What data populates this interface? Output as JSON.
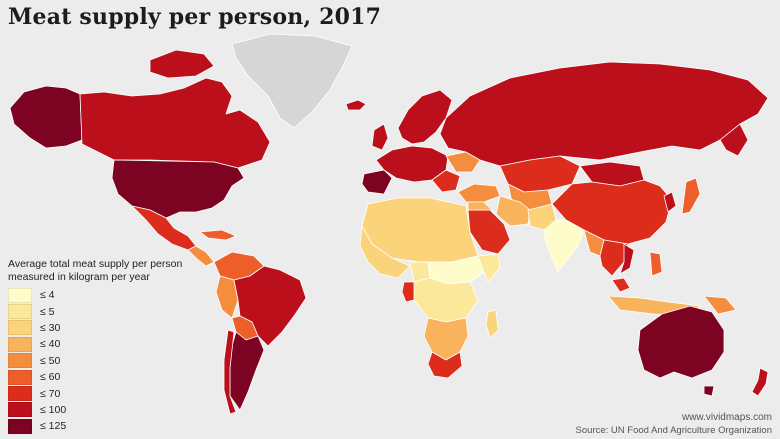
{
  "title": "Meat supply per person, 2017",
  "legend": {
    "title_line1": "Average total meat supply per person",
    "title_line2": "measured in kilogram per year",
    "items": [
      {
        "label": "≤ 4",
        "color": "#fefcc8"
      },
      {
        "label": "≤ 5",
        "color": "#fce89a"
      },
      {
        "label": "≤ 30",
        "color": "#fbd37a"
      },
      {
        "label": "≤ 40",
        "color": "#f9b35c"
      },
      {
        "label": "≤ 50",
        "color": "#f48e3e"
      },
      {
        "label": "≤ 60",
        "color": "#ee5e2a"
      },
      {
        "label": "≤ 70",
        "color": "#dc2c1c"
      },
      {
        "label": "≤ 100",
        "color": "#bb0f1b"
      },
      {
        "label": "≤ 125",
        "color": "#7d0322"
      }
    ]
  },
  "no_data_color": "#d6d6d6",
  "footer": {
    "site": "www.vividmaps.com",
    "source": "Source: UN Food And Agriculture Organization"
  }
}
